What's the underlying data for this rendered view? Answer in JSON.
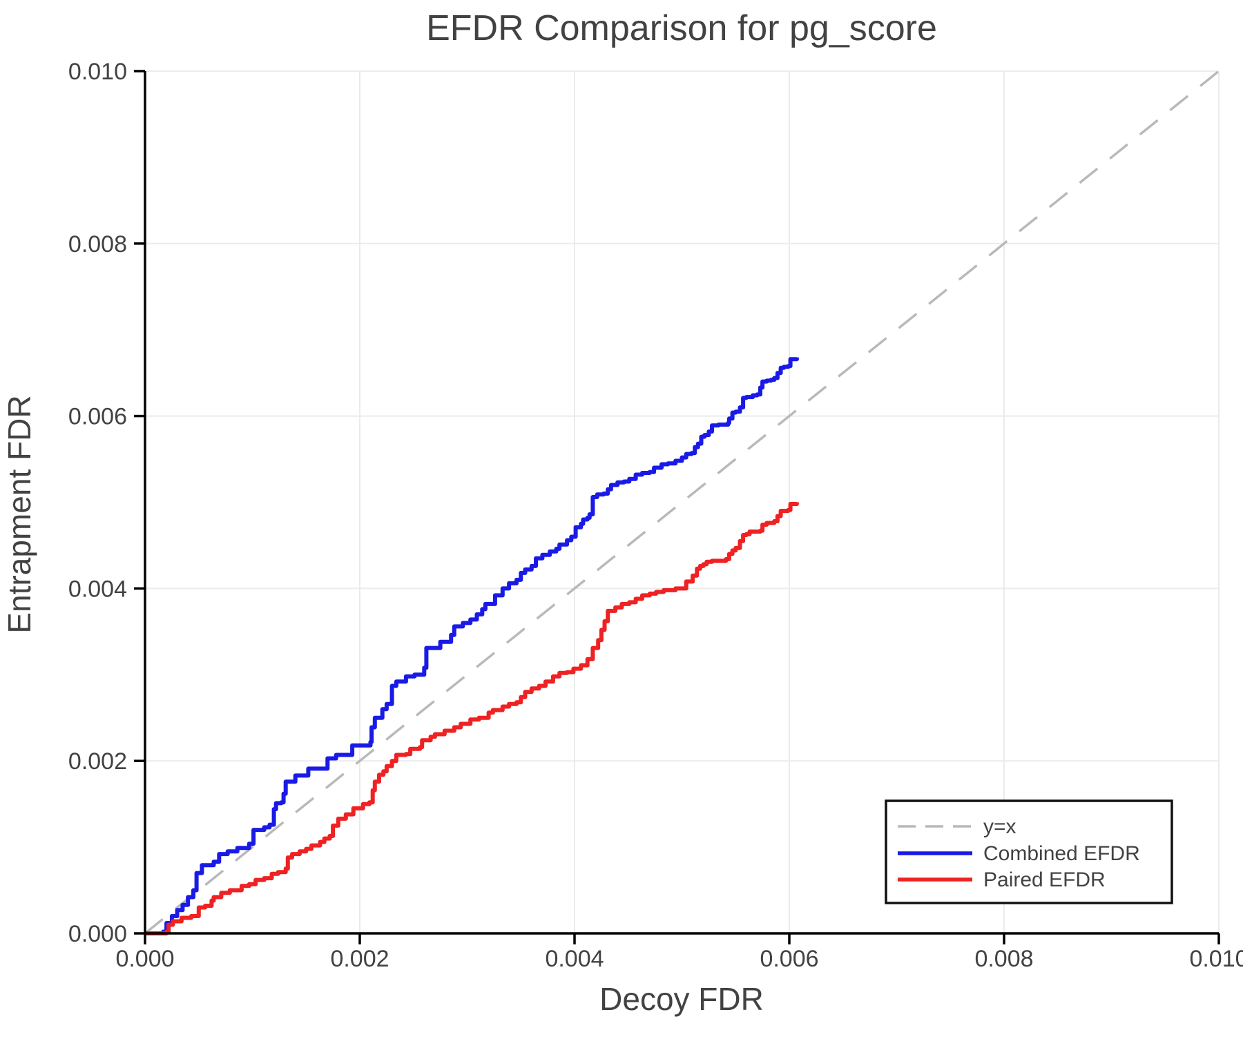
{
  "chart_data": {
    "type": "line",
    "title": "EFDR Comparison for pg_score",
    "xlabel": "Decoy FDR",
    "ylabel": "Entrapment FDR",
    "xlim": [
      0.0,
      0.01
    ],
    "ylim": [
      0.0,
      0.01
    ],
    "grid": true,
    "legend_position": "lower right",
    "colors": {
      "identity_line": "#b9b9b9",
      "combined_efdr": "#1a1ae6",
      "paired_efdr": "#ee2222",
      "grid_line": "#ebebeb",
      "axis_spine": "#000000",
      "text": "#424242",
      "legend_border": "#111111",
      "background": "#ffffff"
    },
    "xticks": {
      "values": [
        0.0,
        0.002,
        0.004,
        0.006,
        0.008,
        0.01
      ],
      "labels": [
        "0.000",
        "0.002",
        "0.004",
        "0.006",
        "0.008",
        "0.010"
      ]
    },
    "yticks": {
      "values": [
        0.0,
        0.002,
        0.004,
        0.006,
        0.008,
        0.01
      ],
      "labels": [
        "0.000",
        "0.002",
        "0.004",
        "0.006",
        "0.008",
        "0.010"
      ]
    },
    "series": [
      {
        "name": "y=x",
        "style": "dashed",
        "step": false,
        "color": "#b9b9b9",
        "width": 3.5,
        "x": [
          0.0,
          0.01
        ],
        "y": [
          0.0,
          0.01
        ]
      },
      {
        "name": "Combined EFDR",
        "style": "solid",
        "step": true,
        "color": "#1a1ae6",
        "width": 6,
        "x": [
          0,
          0.00017,
          0.0002,
          0.00025,
          0.0003,
          0.00035,
          0.0004,
          0.00045,
          0.00048,
          0.00053,
          0.00064,
          0.00069,
          0.00077,
          0.00086,
          0.00097,
          0.00101,
          0.00111,
          0.00116,
          0.0012,
          0.00122,
          0.00127,
          0.00129,
          0.00131,
          0.0014,
          0.00152,
          0.0017,
          0.00178,
          0.00193,
          0.0021,
          0.00211,
          0.00214,
          0.00221,
          0.00225,
          0.0023,
          0.00234,
          0.00243,
          0.00251,
          0.0026,
          0.00262,
          0.00275,
          0.00285,
          0.00288,
          0.00296,
          0.00303,
          0.00309,
          0.00314,
          0.00317,
          0.00326,
          0.00333,
          0.00339,
          0.00346,
          0.0035,
          0.00354,
          0.0036,
          0.00364,
          0.0037,
          0.00377,
          0.00383,
          0.00386,
          0.00393,
          0.00397,
          0.00401,
          0.00406,
          0.00408,
          0.00412,
          0.00414,
          0.00417,
          0.00421,
          0.00427,
          0.00431,
          0.00434,
          0.0044,
          0.00446,
          0.00451,
          0.00457,
          0.00463,
          0.0047,
          0.00474,
          0.00481,
          0.00487,
          0.00494,
          0.005,
          0.00504,
          0.00509,
          0.00512,
          0.00515,
          0.00518,
          0.00521,
          0.00525,
          0.00528,
          0.00534,
          0.00543,
          0.00544,
          0.00547,
          0.0055,
          0.00554,
          0.00557,
          0.0056,
          0.00566,
          0.0057,
          0.00573,
          0.00575,
          0.00579,
          0.00583,
          0.00586,
          0.00589,
          0.00592,
          0.00595,
          0.00599,
          0.00601,
          0.00607
        ],
        "y": [
          0,
          2e-05,
          0.00012,
          0.0002,
          0.00027,
          0.00033,
          0.00042,
          0.0005,
          0.0007,
          0.00079,
          0.00083,
          0.00092,
          0.00095,
          0.00099,
          0.00104,
          0.0012,
          0.00123,
          0.00126,
          0.00144,
          0.00151,
          0.00152,
          0.00162,
          0.00176,
          0.00183,
          0.00191,
          0.00203,
          0.00207,
          0.00218,
          0.00222,
          0.00239,
          0.0025,
          0.0026,
          0.00266,
          0.00287,
          0.00292,
          0.00298,
          0.003,
          0.00308,
          0.00331,
          0.00338,
          0.00346,
          0.00356,
          0.0036,
          0.00364,
          0.0037,
          0.00376,
          0.00382,
          0.00392,
          0.004,
          0.00406,
          0.0041,
          0.00418,
          0.00422,
          0.00426,
          0.00435,
          0.00439,
          0.00443,
          0.00446,
          0.00451,
          0.00456,
          0.0046,
          0.00471,
          0.00475,
          0.0048,
          0.00482,
          0.00486,
          0.00506,
          0.00509,
          0.0051,
          0.00515,
          0.0052,
          0.00523,
          0.00524,
          0.00527,
          0.00532,
          0.00534,
          0.00535,
          0.0054,
          0.00544,
          0.00545,
          0.00548,
          0.00552,
          0.00556,
          0.00557,
          0.00564,
          0.00568,
          0.00576,
          0.00578,
          0.00582,
          0.00589,
          0.0059,
          0.00592,
          0.00597,
          0.00604,
          0.00605,
          0.0061,
          0.00621,
          0.00622,
          0.00624,
          0.00625,
          0.00633,
          0.0064,
          0.00641,
          0.00642,
          0.00644,
          0.0065,
          0.00656,
          0.00657,
          0.00658,
          0.00666,
          0.00668
        ]
      },
      {
        "name": "Paired EFDR",
        "style": "solid",
        "step": true,
        "color": "#ee2222",
        "width": 6,
        "x": [
          0,
          0.0002,
          0.00022,
          0.00026,
          0.00034,
          0.00043,
          0.0005,
          0.00056,
          0.00062,
          0.00064,
          0.00071,
          0.00079,
          0.0009,
          0.00097,
          0.00103,
          0.00111,
          0.00118,
          0.00124,
          0.00131,
          0.00133,
          0.00137,
          0.00144,
          0.0015,
          0.00155,
          0.00163,
          0.00167,
          0.00172,
          0.00175,
          0.0018,
          0.00187,
          0.00194,
          0.00203,
          0.00209,
          0.00212,
          0.00214,
          0.00218,
          0.00222,
          0.00225,
          0.0023,
          0.00234,
          0.00243,
          0.00247,
          0.00256,
          0.00258,
          0.00266,
          0.0027,
          0.00279,
          0.00288,
          0.00294,
          0.00303,
          0.00311,
          0.0032,
          0.00324,
          0.00333,
          0.00339,
          0.00346,
          0.0035,
          0.00354,
          0.0036,
          0.00367,
          0.00373,
          0.0038,
          0.00386,
          0.00393,
          0.00399,
          0.00406,
          0.00412,
          0.00417,
          0.00422,
          0.00425,
          0.00428,
          0.00431,
          0.00438,
          0.00444,
          0.00451,
          0.00457,
          0.00463,
          0.0047,
          0.00476,
          0.00483,
          0.00494,
          0.00504,
          0.0051,
          0.00514,
          0.00517,
          0.0052,
          0.00523,
          0.00528,
          0.00541,
          0.00544,
          0.00547,
          0.0055,
          0.00554,
          0.00557,
          0.0056,
          0.00563,
          0.00573,
          0.00575,
          0.00579,
          0.00586,
          0.00589,
          0.00592,
          0.00599,
          0.00601,
          0.00607
        ],
        "y": [
          0,
          2e-05,
          0.0001,
          0.00014,
          0.00018,
          0.0002,
          0.0003,
          0.00032,
          0.00038,
          0.00042,
          0.00047,
          0.0005,
          0.00055,
          0.00057,
          0.00062,
          0.00064,
          0.00069,
          0.00071,
          0.00075,
          0.00088,
          0.00092,
          0.00095,
          0.00098,
          0.00102,
          0.00106,
          0.0011,
          0.00113,
          0.00125,
          0.00133,
          0.00138,
          0.00145,
          0.0015,
          0.00152,
          0.00166,
          0.00176,
          0.00184,
          0.00188,
          0.00194,
          0.002,
          0.00207,
          0.00208,
          0.00214,
          0.00216,
          0.00224,
          0.00228,
          0.00231,
          0.00235,
          0.00239,
          0.00243,
          0.00248,
          0.0025,
          0.00256,
          0.00259,
          0.00263,
          0.00266,
          0.00268,
          0.00274,
          0.0028,
          0.00284,
          0.00287,
          0.00292,
          0.00298,
          0.00302,
          0.00303,
          0.00307,
          0.00311,
          0.00318,
          0.00331,
          0.0034,
          0.00352,
          0.00362,
          0.00374,
          0.00378,
          0.00382,
          0.00384,
          0.00388,
          0.00392,
          0.00394,
          0.00396,
          0.00398,
          0.004,
          0.00408,
          0.00415,
          0.00423,
          0.00426,
          0.00428,
          0.00431,
          0.00432,
          0.00434,
          0.0044,
          0.00444,
          0.00447,
          0.00455,
          0.00462,
          0.00463,
          0.00466,
          0.00467,
          0.00474,
          0.00476,
          0.00478,
          0.00484,
          0.0049,
          0.00491,
          0.00498,
          0.005
        ]
      }
    ]
  }
}
